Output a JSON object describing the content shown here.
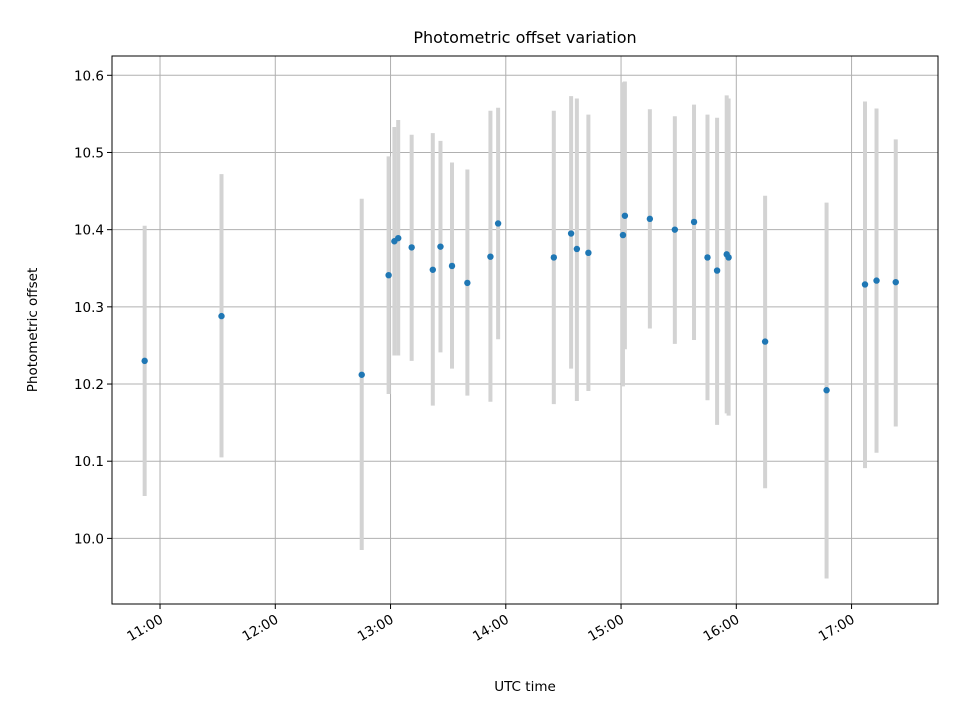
{
  "chart_data": {
    "type": "scatter",
    "title": "Photometric offset variation",
    "xlabel": "UTC time",
    "ylabel": "Photometric offset",
    "x_ticks": [
      "11:00",
      "12:00",
      "13:00",
      "14:00",
      "15:00",
      "16:00",
      "17:00"
    ],
    "y_ticks": [
      "10.0",
      "10.1",
      "10.2",
      "10.3",
      "10.4",
      "10.5",
      "10.6"
    ],
    "xlim": [
      "10:35",
      "17:45"
    ],
    "ylim": [
      9.915,
      10.625
    ],
    "grid": true,
    "points": [
      {
        "t": "10:52",
        "y": 10.23,
        "lo": 10.055,
        "hi": 10.405
      },
      {
        "t": "11:32",
        "y": 10.288,
        "lo": 10.105,
        "hi": 10.472
      },
      {
        "t": "12:45",
        "y": 10.212,
        "lo": 9.985,
        "hi": 10.44
      },
      {
        "t": "12:59",
        "y": 10.341,
        "lo": 10.187,
        "hi": 10.495
      },
      {
        "t": "13:02",
        "y": 10.385,
        "lo": 10.237,
        "hi": 10.533
      },
      {
        "t": "13:04",
        "y": 10.389,
        "lo": 10.237,
        "hi": 10.542
      },
      {
        "t": "13:11",
        "y": 10.377,
        "lo": 10.23,
        "hi": 10.523
      },
      {
        "t": "13:22",
        "y": 10.348,
        "lo": 10.172,
        "hi": 10.525
      },
      {
        "t": "13:26",
        "y": 10.378,
        "lo": 10.241,
        "hi": 10.515
      },
      {
        "t": "13:32",
        "y": 10.353,
        "lo": 10.22,
        "hi": 10.487
      },
      {
        "t": "13:40",
        "y": 10.331,
        "lo": 10.185,
        "hi": 10.478
      },
      {
        "t": "13:52",
        "y": 10.365,
        "lo": 10.177,
        "hi": 10.554
      },
      {
        "t": "13:56",
        "y": 10.408,
        "lo": 10.258,
        "hi": 10.558
      },
      {
        "t": "14:25",
        "y": 10.364,
        "lo": 10.174,
        "hi": 10.554
      },
      {
        "t": "14:34",
        "y": 10.395,
        "lo": 10.22,
        "hi": 10.573
      },
      {
        "t": "14:37",
        "y": 10.375,
        "lo": 10.178,
        "hi": 10.57
      },
      {
        "t": "14:43",
        "y": 10.37,
        "lo": 10.191,
        "hi": 10.549
      },
      {
        "t": "15:01",
        "y": 10.393,
        "lo": 10.197,
        "hi": 10.591
      },
      {
        "t": "15:02",
        "y": 10.418,
        "lo": 10.245,
        "hi": 10.592
      },
      {
        "t": "15:15",
        "y": 10.414,
        "lo": 10.272,
        "hi": 10.556
      },
      {
        "t": "15:28",
        "y": 10.4,
        "lo": 10.252,
        "hi": 10.547
      },
      {
        "t": "15:38",
        "y": 10.41,
        "lo": 10.257,
        "hi": 10.562
      },
      {
        "t": "15:45",
        "y": 10.364,
        "lo": 10.179,
        "hi": 10.549
      },
      {
        "t": "15:50",
        "y": 10.347,
        "lo": 10.147,
        "hi": 10.545
      },
      {
        "t": "15:55",
        "y": 10.368,
        "lo": 10.162,
        "hi": 10.574
      },
      {
        "t": "15:56",
        "y": 10.364,
        "lo": 10.159,
        "hi": 10.57
      },
      {
        "t": "16:15",
        "y": 10.255,
        "lo": 10.065,
        "hi": 10.444
      },
      {
        "t": "16:47",
        "y": 10.192,
        "lo": 9.948,
        "hi": 10.435
      },
      {
        "t": "17:07",
        "y": 10.329,
        "lo": 10.091,
        "hi": 10.566
      },
      {
        "t": "17:13",
        "y": 10.334,
        "lo": 10.111,
        "hi": 10.557
      },
      {
        "t": "17:23",
        "y": 10.332,
        "lo": 10.145,
        "hi": 10.517
      }
    ]
  }
}
